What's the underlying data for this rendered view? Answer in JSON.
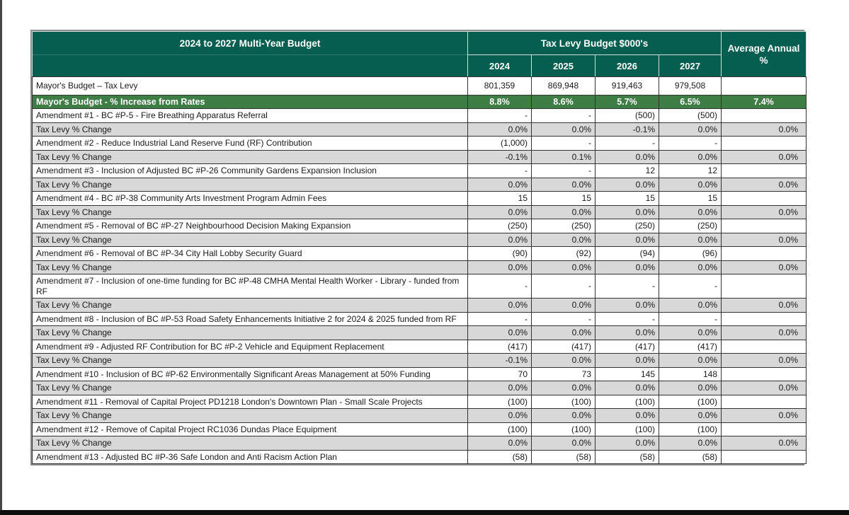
{
  "colors": {
    "header_green": "#055E4F",
    "summary_row_green": "#3E7D44",
    "change_row_gray": "#D8D8D8"
  },
  "header": {
    "title": "2024 to 2027 Multi-Year Budget",
    "group": "Tax Levy Budget $000's",
    "avg": "Average Annual %",
    "years": [
      "2024",
      "2025",
      "2026",
      "2027"
    ]
  },
  "rows": [
    {
      "type": "summary",
      "label": "Mayor's Budget – Tax Levy",
      "values": [
        "801,359",
        "869,948",
        "919,463",
        "979,508"
      ],
      "avg": ""
    },
    {
      "type": "green",
      "label": "Mayor's Budget - % Increase from Rates",
      "values": [
        "8.8%",
        "8.6%",
        "5.7%",
        "6.5%"
      ],
      "avg": "7.4%"
    },
    {
      "type": "plain",
      "label": "Amendment #1 - BC #P-5 - Fire Breathing Apparatus Referral",
      "values": [
        "-",
        "-",
        "(500)",
        "(500)"
      ],
      "avg": ""
    },
    {
      "type": "gray",
      "label": "Tax Levy % Change",
      "values": [
        "0.0%",
        "0.0%",
        "-0.1%",
        "0.0%"
      ],
      "avg": "0.0%"
    },
    {
      "type": "plain",
      "label": "Amendment #2 - Reduce Industrial Land Reserve Fund (RF) Contribution",
      "values": [
        "(1,000)",
        "-",
        "-",
        "-"
      ],
      "avg": ""
    },
    {
      "type": "gray",
      "label": "Tax Levy % Change",
      "values": [
        "-0.1%",
        "0.1%",
        "0.0%",
        "0.0%"
      ],
      "avg": "0.0%"
    },
    {
      "type": "plain",
      "label": "Amendment #3 - Inclusion of Adjusted BC #P-26 Community Gardens Expansion Inclusion",
      "values": [
        "-",
        "-",
        "12",
        "12"
      ],
      "avg": ""
    },
    {
      "type": "gray",
      "label": "Tax Levy % Change",
      "values": [
        "0.0%",
        "0.0%",
        "0.0%",
        "0.0%"
      ],
      "avg": "0.0%"
    },
    {
      "type": "plain",
      "label": "Amendment #4 - BC #P-38 Community Arts Investment Program Admin Fees",
      "values": [
        "15",
        "15",
        "15",
        "15"
      ],
      "avg": ""
    },
    {
      "type": "gray",
      "label": "Tax Levy % Change",
      "values": [
        "0.0%",
        "0.0%",
        "0.0%",
        "0.0%"
      ],
      "avg": "0.0%"
    },
    {
      "type": "plain",
      "label": "Amendment #5 - Removal of BC #P-27 Neighbourhood Decision Making Expansion",
      "values": [
        "(250)",
        "(250)",
        "(250)",
        "(250)"
      ],
      "avg": ""
    },
    {
      "type": "gray",
      "label": "Tax Levy % Change",
      "values": [
        "0.0%",
        "0.0%",
        "0.0%",
        "0.0%"
      ],
      "avg": "0.0%"
    },
    {
      "type": "plain",
      "label": "Amendment #6 - Removal of BC #P-34 City Hall Lobby Security Guard",
      "values": [
        "(90)",
        "(92)",
        "(94)",
        "(96)"
      ],
      "avg": ""
    },
    {
      "type": "gray",
      "label": "Tax Levy % Change",
      "values": [
        "0.0%",
        "0.0%",
        "0.0%",
        "0.0%"
      ],
      "avg": "0.0%"
    },
    {
      "type": "plain",
      "label": "Amendment #7 - Inclusion of one-time funding for BC #P-48 CMHA Mental Health Worker - Library -  funded from RF",
      "values": [
        "-",
        "-",
        "-",
        "-"
      ],
      "avg": ""
    },
    {
      "type": "gray",
      "label": "Tax Levy % Change",
      "values": [
        "0.0%",
        "0.0%",
        "0.0%",
        "0.0%"
      ],
      "avg": "0.0%"
    },
    {
      "type": "plain",
      "label": "Amendment #8 - Inclusion of BC #P-53 Road Safety Enhancements Initiative 2 for 2024 & 2025 funded from RF",
      "values": [
        "-",
        "-",
        "-",
        "-"
      ],
      "avg": ""
    },
    {
      "type": "gray",
      "label": "Tax Levy % Change",
      "values": [
        "0.0%",
        "0.0%",
        "0.0%",
        "0.0%"
      ],
      "avg": "0.0%"
    },
    {
      "type": "plain",
      "label": "Amendment #9 - Adjusted RF Contribution for BC #P-2 Vehicle and Equipment Replacement",
      "values": [
        "(417)",
        "(417)",
        "(417)",
        "(417)"
      ],
      "avg": ""
    },
    {
      "type": "gray",
      "label": "Tax Levy % Change",
      "values": [
        "-0.1%",
        "0.0%",
        "0.0%",
        "0.0%"
      ],
      "avg": "0.0%"
    },
    {
      "type": "plain",
      "label": "Amendment #10 - Inclusion of BC #P-62 Environmentally Significant Areas Management at 50% Funding",
      "values": [
        "70",
        "73",
        "145",
        "148"
      ],
      "avg": ""
    },
    {
      "type": "gray",
      "label": "Tax Levy % Change",
      "values": [
        "0.0%",
        "0.0%",
        "0.0%",
        "0.0%"
      ],
      "avg": "0.0%"
    },
    {
      "type": "plain",
      "label": "Amendment #11 - Removal of Capital Project PD1218 London's Downtown Plan - Small Scale Projects",
      "values": [
        "(100)",
        "(100)",
        "(100)",
        "(100)"
      ],
      "avg": ""
    },
    {
      "type": "gray",
      "label": "Tax Levy % Change",
      "values": [
        "0.0%",
        "0.0%",
        "0.0%",
        "0.0%"
      ],
      "avg": "0.0%"
    },
    {
      "type": "plain",
      "label": "Amendment #12 - Remove of Capital Project RC1036 Dundas Place Equipment",
      "values": [
        "(100)",
        "(100)",
        "(100)",
        "(100)"
      ],
      "avg": ""
    },
    {
      "type": "gray",
      "label": "Tax Levy % Change",
      "values": [
        "0.0%",
        "0.0%",
        "0.0%",
        "0.0%"
      ],
      "avg": "0.0%"
    },
    {
      "type": "plain",
      "label": "Amendment #13 - Adjusted BC #P-36 Safe London and Anti Racism Action Plan",
      "values": [
        "(58)",
        "(58)",
        "(58)",
        "(58)"
      ],
      "avg": ""
    }
  ]
}
